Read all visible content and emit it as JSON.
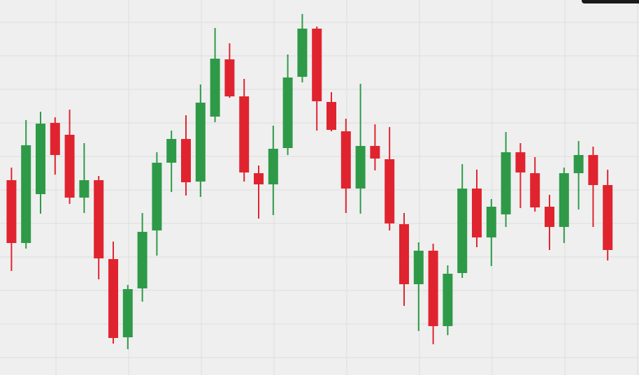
{
  "chart_data": {
    "type": "candlestick",
    "open": [
      279,
      189,
      259,
      361,
      344,
      254,
      279,
      166,
      54,
      124,
      207,
      304,
      338,
      277,
      370,
      452,
      399,
      289,
      273,
      325,
      427,
      496,
      391,
      349,
      267,
      328,
      309,
      216,
      130,
      178,
      70,
      146,
      267,
      197,
      230,
      319,
      289,
      241,
      212,
      289,
      315,
      272
    ],
    "high": [
      297,
      365,
      377,
      369,
      380,
      332,
      285,
      191,
      129,
      232,
      319,
      350,
      372,
      416,
      497,
      475,
      424,
      300,
      357,
      459,
      517,
      499,
      405,
      367,
      417,
      359,
      355,
      232,
      190,
      188,
      157,
      302,
      294,
      252,
      348,
      332,
      312,
      258,
      297,
      335,
      327,
      294
    ],
    "low": [
      149,
      181,
      231,
      287,
      245,
      232,
      137,
      45,
      37,
      105,
      171,
      262,
      257,
      255,
      362,
      397,
      277,
      224,
      229,
      315,
      419,
      350,
      349,
      232,
      231,
      293,
      207,
      99,
      63,
      44,
      57,
      139,
      183,
      156,
      212,
      239,
      234,
      179,
      189,
      237,
      212,
      164
    ],
    "close": [
      189,
      329,
      360,
      315,
      254,
      279,
      167,
      53,
      123,
      205,
      304,
      338,
      276,
      390,
      453,
      399,
      290,
      273,
      324,
      426,
      496,
      392,
      351,
      267,
      328,
      310,
      217,
      130,
      178,
      70,
      145,
      267,
      197,
      241,
      319,
      290,
      240,
      212,
      289,
      315,
      272,
      179
    ],
    "up_color": "#2e9a48",
    "down_color": "#e0242f",
    "ylim": [
      0,
      537
    ],
    "yticks": [
      25,
      73,
      121,
      169,
      217,
      265,
      313,
      361,
      409,
      457,
      505
    ],
    "grid": true
  }
}
